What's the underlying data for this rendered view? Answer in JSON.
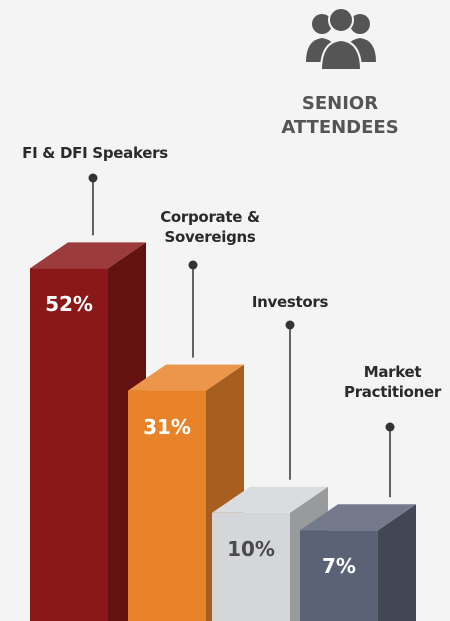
{
  "chart_data": {
    "type": "bar3d",
    "title": "SENIOR ATTENDEES",
    "categories": [
      "FI & DFI Speakers",
      "Corporate & Sovereigns",
      "Investors",
      "Market Practitioner"
    ],
    "values": [
      52,
      31,
      10,
      7
    ],
    "value_labels": [
      "52%",
      "31%",
      "10%",
      "7%"
    ],
    "colors": [
      "#8a1818",
      "#e8832a",
      "#d4d6d9",
      "#5b6276"
    ],
    "value_label_colors": [
      "#ffffff",
      "#ffffff",
      "#4a4a4a",
      "#ffffff"
    ]
  }
}
